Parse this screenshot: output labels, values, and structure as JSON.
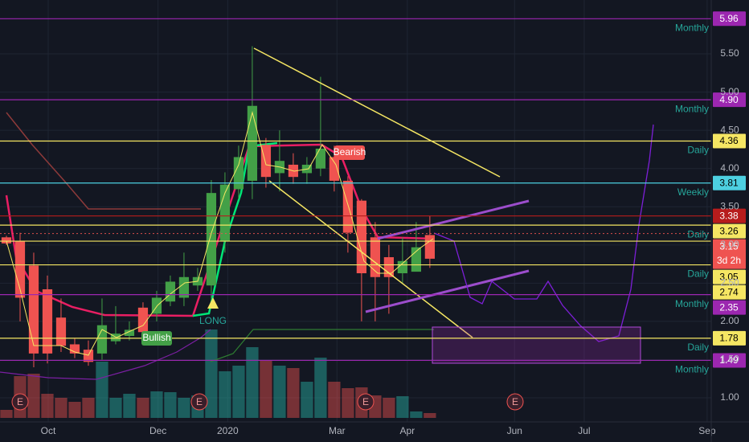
{
  "chart_data": {
    "type": "candlestick",
    "open": [
      3.1,
      3.05,
      2.73,
      2.42,
      2.05,
      1.7,
      1.63,
      1.58,
      1.74,
      1.81,
      2.18,
      2.1,
      2.26,
      2.31,
      2.47,
      2.47,
      3.05,
      3.73,
      3.84,
      4.31,
      3.94,
      4.05,
      3.94,
      4.0,
      4.15,
      3.84,
      3.58,
      3.1,
      2.84,
      2.63,
      2.65,
      3.13
    ],
    "high": [
      3.12,
      3.16,
      2.9,
      2.6,
      2.3,
      1.78,
      1.75,
      2.3,
      2.2,
      2.0,
      2.25,
      2.4,
      2.6,
      2.9,
      2.7,
      3.85,
      3.95,
      4.3,
      5.6,
      4.4,
      4.5,
      4.2,
      4.15,
      5.2,
      4.3,
      3.9,
      3.6,
      3.3,
      3.0,
      3.1,
      3.3,
      3.38
    ],
    "low": [
      3.0,
      2.0,
      1.4,
      1.45,
      1.6,
      1.52,
      1.42,
      1.5,
      1.7,
      1.75,
      1.8,
      2.0,
      2.2,
      2.2,
      2.4,
      2.3,
      2.9,
      3.6,
      3.6,
      3.75,
      3.7,
      3.8,
      3.8,
      3.9,
      3.7,
      2.9,
      2.0,
      2.0,
      2.1,
      2.5,
      2.7,
      2.7
    ],
    "close": [
      3.02,
      2.31,
      1.58,
      1.58,
      1.68,
      1.58,
      1.47,
      1.95,
      1.84,
      1.89,
      1.86,
      2.31,
      2.52,
      2.58,
      2.58,
      3.68,
      3.79,
      4.15,
      4.82,
      3.89,
      4.1,
      3.89,
      4.05,
      4.26,
      3.84,
      3.16,
      2.63,
      2.58,
      2.58,
      2.79,
      2.97,
      2.82
    ],
    "volume": [
      10,
      52,
      55,
      30,
      25,
      20,
      25,
      70,
      25,
      30,
      25,
      33,
      32,
      25,
      28,
      110,
      58,
      65,
      88,
      72,
      65,
      62,
      45,
      75,
      45,
      37,
      38,
      28,
      25,
      27,
      8,
      6
    ],
    "xlim": [
      -0.47,
      51.6
    ],
    "xticks": [
      {
        "value": 3.06,
        "label": "Oct"
      },
      {
        "value": 11.1,
        "label": "Dec"
      },
      {
        "value": 16.2,
        "label": "2020"
      },
      {
        "value": 24.2,
        "label": "Mar"
      },
      {
        "value": 29.35,
        "label": "Apr"
      },
      {
        "value": 37.2,
        "label": "Jun"
      },
      {
        "value": 42.3,
        "label": "Jul"
      },
      {
        "value": 51.3,
        "label": "Sep"
      }
    ],
    "ylim": [
      0.685,
      6.205
    ],
    "yticks": [
      {
        "value": 1,
        "label": "1.00"
      },
      {
        "value": 1.5,
        "label": "1.50"
      },
      {
        "value": 2,
        "label": "2.00"
      },
      {
        "value": 2.5,
        "label": "2.50"
      },
      {
        "value": 3,
        "label": "3.00"
      },
      {
        "value": 3.5,
        "label": "3.50"
      },
      {
        "value": 4,
        "label": "4.00"
      },
      {
        "value": 4.5,
        "label": "4.50"
      },
      {
        "value": 5,
        "label": "5.00"
      },
      {
        "value": 5.5,
        "label": "5.50"
      }
    ],
    "grid": true,
    "colors": {
      "up": "#43a047",
      "down": "#ef5350"
    },
    "levels": [
      {
        "value": 5.96,
        "color": "#9c27b0",
        "text_color": "#ffffff",
        "note": "Monthly"
      },
      {
        "value": {
          "value": 4.9,
          "label": "4.90"
        },
        "color": "#9c27b0",
        "text_color": "#ffffff",
        "note": "Monthly"
      },
      {
        "value": 4.36,
        "color": "#f5e663",
        "text_color": "#000000",
        "note": "Daily"
      },
      {
        "value": 3.81,
        "color": "#4dd0e1",
        "text_color": "#000000",
        "note": "Weekly"
      },
      {
        "value": 3.38,
        "color": "#b71c1c",
        "text_color": "#ffffff"
      },
      {
        "value": 3.26,
        "color": "#f5e663",
        "text_color": "#000000",
        "note": "Daily"
      },
      {
        "value": 3.15,
        "color": "#ef5350",
        "text_color": "#ffffff",
        "sub": "3d 2h"
      },
      {
        "value": 3.05,
        "color": "#f5e663",
        "text_color": "#000000"
      },
      {
        "value": 2.74,
        "color": "#f5e663",
        "text_color": "#000000",
        "note": "Daily"
      },
      {
        "value": 2.35,
        "color": "#9c27b0",
        "text_color": "#ffffff",
        "note": "Monthly"
      },
      {
        "value": 1.78,
        "color": "#f5e663",
        "text_color": "#000000",
        "note": "Daily"
      },
      {
        "value": 1.49,
        "color": "#9c27b0",
        "text_color": "#ffffff",
        "note": "Monthly"
      }
    ],
    "annotations": [
      "Bullish",
      "Bearish",
      "LONG"
    ],
    "events": [
      "E",
      "E",
      "E",
      "E"
    ]
  }
}
